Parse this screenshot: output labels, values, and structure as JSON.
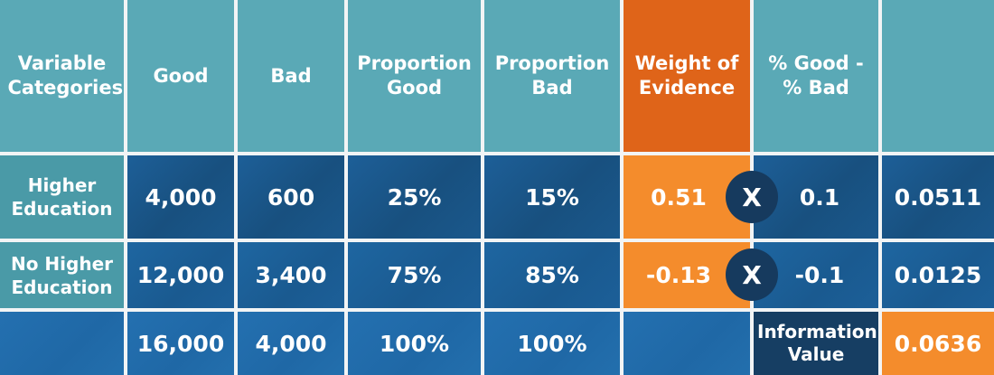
{
  "header": {
    "variable_categories": "Variable Categories",
    "good": "Good",
    "bad": "Bad",
    "proportion_good": "Proportion Good",
    "proportion_bad": "Proportion Bad",
    "weight_of_evidence": "Weight of Evidence",
    "pct_good_minus_bad": "% Good - % Bad",
    "last": ""
  },
  "rows": [
    {
      "label": "Higher Education",
      "good": "4,000",
      "bad": "600",
      "proportion_good": "25%",
      "proportion_bad": "15%",
      "woe": "0.51",
      "multiply": "X",
      "diff": "0.1",
      "result": "0.0511"
    },
    {
      "label": "No Higher Education",
      "good": "12,000",
      "bad": "3,400",
      "proportion_good": "75%",
      "proportion_bad": "85%",
      "woe": "-0.13",
      "multiply": "X",
      "diff": "-0.1",
      "result": "0.0125"
    }
  ],
  "totals": {
    "label": "",
    "good": "16,000",
    "bad": "4,000",
    "proportion_good": "100%",
    "proportion_bad": "100%",
    "woe": "",
    "information_value_label": "Information Value",
    "information_value": "0.0636"
  },
  "colors": {
    "header_teal": "#5aa9b6",
    "woe_header_orange": "#df6419",
    "woe_cell_orange": "#f48c2c",
    "cell_blue": "#1b5a8e",
    "iv_label_navy": "#163e63"
  }
}
